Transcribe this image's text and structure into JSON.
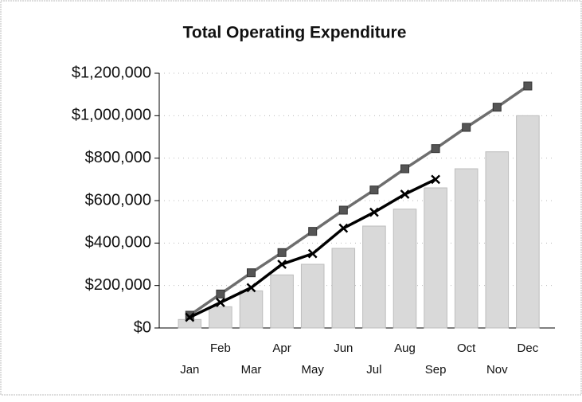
{
  "chart_data": {
    "type": "bar-line",
    "title": "Total Operating Expenditure",
    "categories": [
      "Jan",
      "Feb",
      "Mar",
      "Apr",
      "May",
      "Jun",
      "Jul",
      "Aug",
      "Sep",
      "Oct",
      "Nov",
      "Dec"
    ],
    "ylim": [
      0,
      1200000
    ],
    "yticks": [
      {
        "value": 0,
        "label": "$0"
      },
      {
        "value": 200000,
        "label": "$200,000"
      },
      {
        "value": 400000,
        "label": "$400,000"
      },
      {
        "value": 600000,
        "label": "$600,000"
      },
      {
        "value": 800000,
        "label": "$800,000"
      },
      {
        "value": 1000000,
        "label": "$1,000,000"
      },
      {
        "value": 1200000,
        "label": "$1,200,000"
      }
    ],
    "grid": true,
    "series": [
      {
        "type": "bar",
        "color": "#d9d9d9",
        "values": [
          40000,
          100000,
          175000,
          250000,
          300000,
          375000,
          480000,
          560000,
          660000,
          750000,
          830000,
          1000000
        ]
      },
      {
        "type": "line",
        "marker": "square",
        "color": "#6e6e6e",
        "values": [
          60000,
          160000,
          260000,
          355000,
          455000,
          555000,
          650000,
          750000,
          845000,
          945000,
          1040000,
          1140000
        ]
      },
      {
        "type": "line",
        "marker": "x",
        "color": "#000000",
        "values": [
          50000,
          120000,
          190000,
          300000,
          350000,
          470000,
          545000,
          630000,
          700000,
          null,
          null,
          null
        ]
      }
    ]
  }
}
